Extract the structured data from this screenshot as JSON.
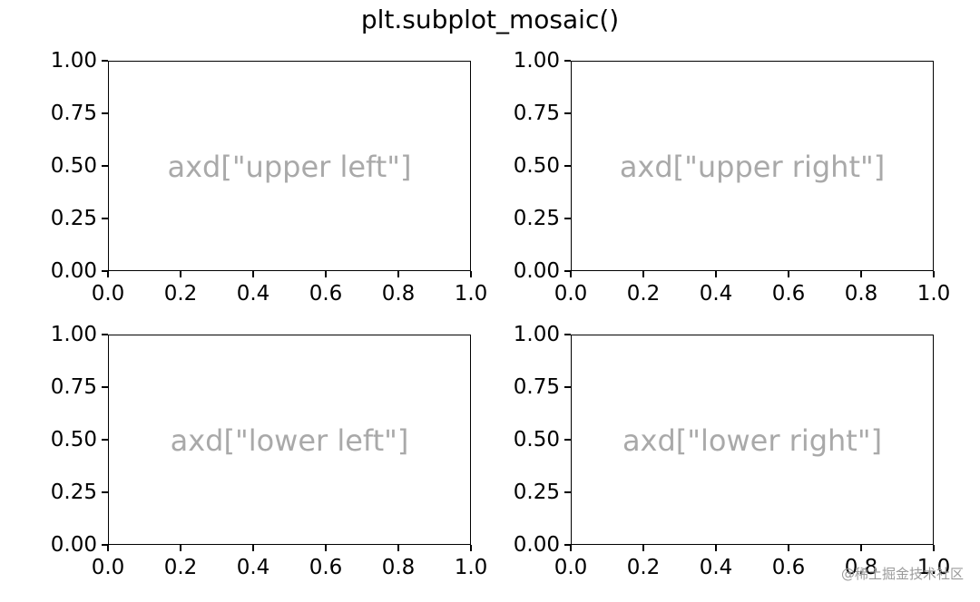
{
  "figure": {
    "title": "plt.subplot_mosaic()",
    "watermark": "@稀土掘金技术社区"
  },
  "chart_data": [
    {
      "type": "scatter",
      "panel": "upper left",
      "annotation": "axd[\"upper left\"]",
      "xlim": [
        0,
        1
      ],
      "ylim": [
        0,
        1
      ],
      "x_ticks": [
        "0.0",
        "0.2",
        "0.4",
        "0.6",
        "0.8",
        "1.0"
      ],
      "y_ticks": [
        "0.00",
        "0.25",
        "0.50",
        "0.75",
        "1.00"
      ],
      "series": [],
      "grid": false
    },
    {
      "type": "scatter",
      "panel": "upper right",
      "annotation": "axd[\"upper right\"]",
      "xlim": [
        0,
        1
      ],
      "ylim": [
        0,
        1
      ],
      "x_ticks": [
        "0.0",
        "0.2",
        "0.4",
        "0.6",
        "0.8",
        "1.0"
      ],
      "y_ticks": [
        "0.00",
        "0.25",
        "0.50",
        "0.75",
        "1.00"
      ],
      "series": [],
      "grid": false
    },
    {
      "type": "scatter",
      "panel": "lower left",
      "annotation": "axd[\"lower left\"]",
      "xlim": [
        0,
        1
      ],
      "ylim": [
        0,
        1
      ],
      "x_ticks": [
        "0.0",
        "0.2",
        "0.4",
        "0.6",
        "0.8",
        "1.0"
      ],
      "y_ticks": [
        "0.00",
        "0.25",
        "0.50",
        "0.75",
        "1.00"
      ],
      "series": [],
      "grid": false
    },
    {
      "type": "scatter",
      "panel": "lower right",
      "annotation": "axd[\"lower right\"]",
      "xlim": [
        0,
        1
      ],
      "ylim": [
        0,
        1
      ],
      "x_ticks": [
        "0.0",
        "0.2",
        "0.4",
        "0.6",
        "0.8",
        "1.0"
      ],
      "y_ticks": [
        "0.00",
        "0.25",
        "0.50",
        "0.75",
        "1.00"
      ],
      "series": [],
      "grid": false
    }
  ]
}
